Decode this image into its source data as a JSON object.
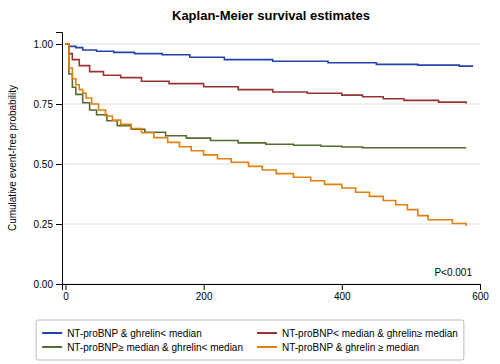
{
  "chart_data": {
    "type": "step",
    "title": "Kaplan-Meier survival estimates",
    "ylabel": "Cumulative event-free probability",
    "xlim": [
      -5,
      600
    ],
    "ylim": [
      0.0,
      1.05
    ],
    "xticks": [
      0,
      200,
      400,
      600
    ],
    "yticks": [
      {
        "value": 0.0,
        "label": "0.00"
      },
      {
        "value": 0.25,
        "label": "0.25"
      },
      {
        "value": 0.5,
        "label": "0.50"
      },
      {
        "value": 0.75,
        "label": "0.75"
      },
      {
        "value": 1.0,
        "label": "1.00"
      }
    ],
    "grid": "y",
    "legend": "bottom",
    "annotations": [
      "P<0.001"
    ],
    "series": [
      {
        "name": "NT-proBNP & ghrelin< median",
        "color": "#2244aa",
        "x": [
          0,
          5,
          15,
          25,
          45,
          70,
          100,
          140,
          180,
          230,
          300,
          380,
          450,
          510,
          570,
          590
        ],
        "values": [
          1.0,
          0.99,
          0.985,
          0.975,
          0.97,
          0.965,
          0.96,
          0.955,
          0.945,
          0.935,
          0.928,
          0.922,
          0.915,
          0.912,
          0.908,
          0.908
        ]
      },
      {
        "name": "NT-proBNP< median & ghrelin≥ median",
        "color": "#993333",
        "x": [
          0,
          5,
          10,
          20,
          35,
          55,
          80,
          110,
          150,
          200,
          250,
          300,
          350,
          400,
          430,
          460,
          490,
          540,
          580
        ],
        "values": [
          1.0,
          0.96,
          0.935,
          0.91,
          0.885,
          0.87,
          0.86,
          0.845,
          0.835,
          0.822,
          0.81,
          0.8,
          0.795,
          0.787,
          0.78,
          0.772,
          0.765,
          0.758,
          0.752
        ]
      },
      {
        "name": "NT-proBNP≥ median & ghrelin< median",
        "color": "#556b2f",
        "x": [
          0,
          5,
          10,
          15,
          25,
          35,
          45,
          60,
          75,
          95,
          115,
          145,
          175,
          210,
          250,
          290,
          330,
          370,
          400,
          430,
          580
        ],
        "values": [
          1.0,
          0.875,
          0.82,
          0.79,
          0.755,
          0.725,
          0.705,
          0.68,
          0.66,
          0.645,
          0.632,
          0.618,
          0.608,
          0.598,
          0.588,
          0.582,
          0.578,
          0.574,
          0.571,
          0.568,
          0.568
        ]
      },
      {
        "name": "NT-proBNP & ghrelin ≥ median",
        "color": "#e08010",
        "x": [
          0,
          5,
          10,
          15,
          20,
          25,
          30,
          38,
          48,
          58,
          68,
          80,
          95,
          110,
          128,
          148,
          165,
          182,
          200,
          220,
          240,
          265,
          285,
          305,
          330,
          355,
          375,
          400,
          420,
          440,
          460,
          478,
          495,
          510,
          525,
          560,
          580
        ],
        "values": [
          1.0,
          0.9,
          0.855,
          0.83,
          0.81,
          0.795,
          0.775,
          0.75,
          0.725,
          0.7,
          0.683,
          0.665,
          0.648,
          0.63,
          0.61,
          0.59,
          0.572,
          0.555,
          0.538,
          0.522,
          0.507,
          0.49,
          0.475,
          0.46,
          0.445,
          0.43,
          0.415,
          0.4,
          0.382,
          0.365,
          0.348,
          0.33,
          0.31,
          0.285,
          0.268,
          0.252,
          0.242
        ]
      }
    ]
  }
}
